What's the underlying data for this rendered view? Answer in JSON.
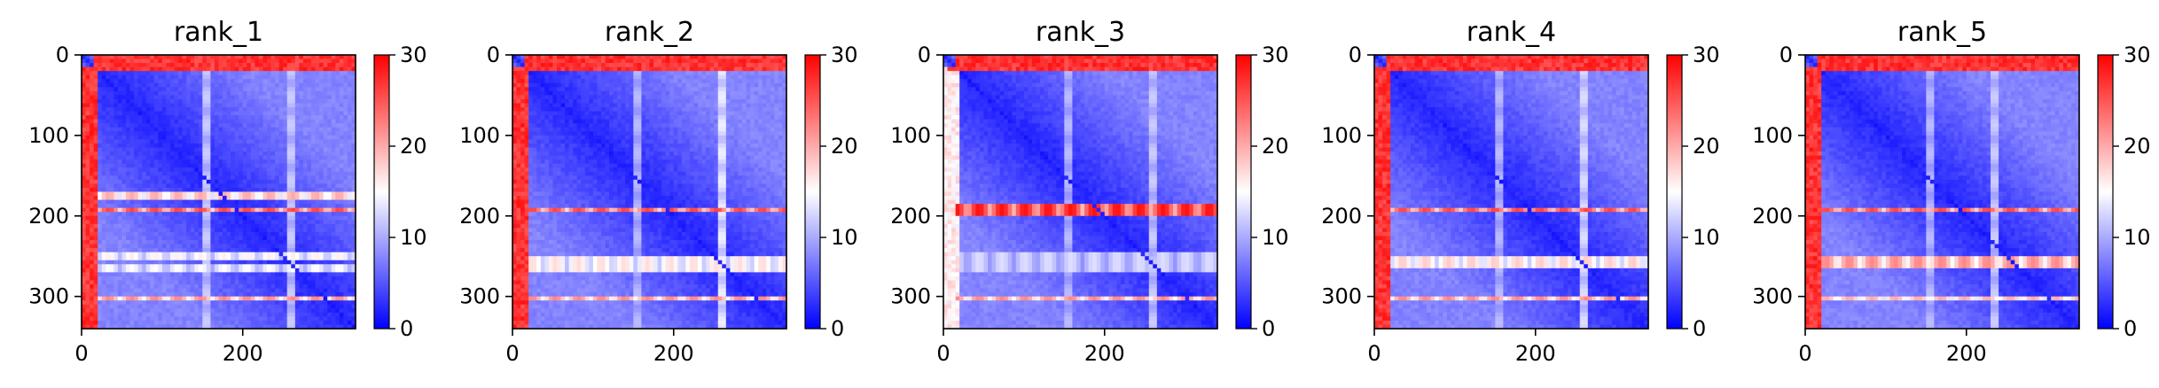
{
  "chart_data": [
    {
      "type": "heatmap",
      "title": "rank_1",
      "xlim": [
        0,
        340
      ],
      "ylim": [
        340,
        0
      ],
      "x_ticks": [
        0,
        200
      ],
      "y_ticks": [
        0,
        100,
        200,
        300
      ],
      "colorbar": {
        "range": [
          0,
          30
        ],
        "ticks": [
          0,
          10,
          20,
          30
        ],
        "colors": [
          "#0000ff",
          "#ffffff",
          "#ff0000"
        ]
      },
      "features": {
        "top_band": [
          5,
          22,
          29
        ],
        "left_band": [
          5,
          22,
          29
        ],
        "h_bands": [
          [
            170,
            178,
            20
          ],
          [
            190,
            196,
            26
          ],
          [
            245,
            255,
            16
          ],
          [
            258,
            268,
            15
          ],
          [
            298,
            305,
            22
          ]
        ],
        "v_bands": [
          [
            150,
            160,
            12
          ],
          [
            255,
            264,
            12
          ]
        ]
      }
    },
    {
      "type": "heatmap",
      "title": "rank_2",
      "xlim": [
        0,
        340
      ],
      "ylim": [
        340,
        0
      ],
      "x_ticks": [
        0,
        200
      ],
      "y_ticks": [
        0,
        100,
        200,
        300
      ],
      "colorbar": {
        "range": [
          0,
          30
        ],
        "ticks": [
          0,
          10,
          20,
          30
        ],
        "colors": [
          "#0000ff",
          "#ffffff",
          "#ff0000"
        ]
      },
      "features": {
        "top_band": [
          5,
          22,
          29
        ],
        "left_band": [
          5,
          22,
          29
        ],
        "h_bands": [
          [
            190,
            196,
            26
          ],
          [
            250,
            268,
            17
          ],
          [
            298,
            305,
            22
          ]
        ],
        "v_bands": [
          [
            150,
            160,
            11
          ],
          [
            255,
            264,
            14
          ]
        ]
      }
    },
    {
      "type": "heatmap",
      "title": "rank_3",
      "xlim": [
        0,
        340
      ],
      "ylim": [
        340,
        0
      ],
      "x_ticks": [
        0,
        200
      ],
      "y_ticks": [
        0,
        100,
        200,
        300
      ],
      "colorbar": {
        "range": [
          0,
          30
        ],
        "ticks": [
          0,
          10,
          20,
          30
        ],
        "colors": [
          "#0000ff",
          "#ffffff",
          "#ff0000"
        ]
      },
      "features": {
        "top_band": [
          5,
          22,
          29
        ],
        "left_band": [
          5,
          22,
          18
        ],
        "h_bands": [
          [
            186,
            198,
            29
          ],
          [
            245,
            268,
            13
          ],
          [
            298,
            305,
            22
          ]
        ],
        "v_bands": [
          [
            150,
            160,
            11
          ],
          [
            255,
            264,
            12
          ]
        ]
      }
    },
    {
      "type": "heatmap",
      "title": "rank_4",
      "xlim": [
        0,
        340
      ],
      "ylim": [
        340,
        0
      ],
      "x_ticks": [
        0,
        200
      ],
      "y_ticks": [
        0,
        100,
        200,
        300
      ],
      "colorbar": {
        "range": [
          0,
          30
        ],
        "ticks": [
          0,
          10,
          20,
          30
        ],
        "colors": [
          "#0000ff",
          "#ffffff",
          "#ff0000"
        ]
      },
      "features": {
        "top_band": [
          5,
          22,
          29
        ],
        "left_band": [
          5,
          22,
          29
        ],
        "h_bands": [
          [
            190,
            196,
            26
          ],
          [
            250,
            266,
            18
          ],
          [
            298,
            305,
            22
          ]
        ],
        "v_bands": [
          [
            150,
            160,
            11
          ],
          [
            255,
            264,
            13
          ]
        ]
      }
    },
    {
      "type": "heatmap",
      "title": "rank_5",
      "xlim": [
        0,
        340
      ],
      "ylim": [
        340,
        0
      ],
      "x_ticks": [
        0,
        200
      ],
      "y_ticks": [
        0,
        100,
        200,
        300
      ],
      "colorbar": {
        "range": [
          0,
          30
        ],
        "ticks": [
          0,
          10,
          20,
          30
        ],
        "colors": [
          "#0000ff",
          "#ffffff",
          "#ff0000"
        ]
      },
      "features": {
        "top_band": [
          5,
          22,
          29
        ],
        "left_band": [
          5,
          22,
          29
        ],
        "h_bands": [
          [
            190,
            196,
            26
          ],
          [
            250,
            266,
            22
          ],
          [
            298,
            305,
            20
          ]
        ],
        "v_bands": [
          [
            150,
            160,
            11
          ],
          [
            230,
            240,
            12
          ]
        ]
      }
    }
  ]
}
